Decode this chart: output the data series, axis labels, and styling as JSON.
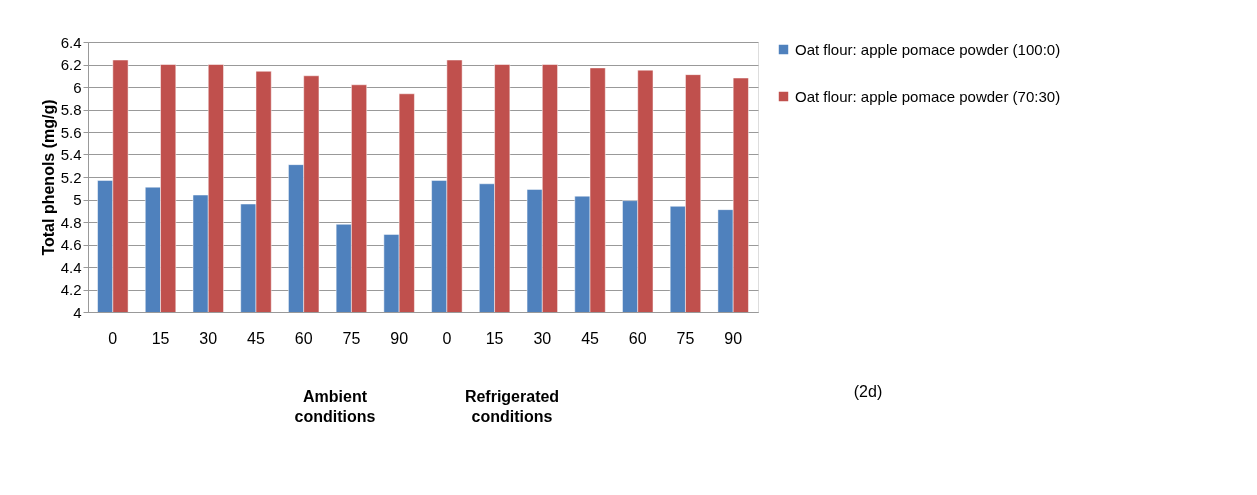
{
  "chart_data": {
    "type": "bar",
    "ylabel": "Total phenols (mg/g)",
    "categories": [
      "0",
      "15",
      "30",
      "45",
      "60",
      "75",
      "90",
      "0",
      "15",
      "30",
      "45",
      "60",
      "75",
      "90"
    ],
    "series": [
      {
        "name": "Oat flour: apple pomace powder (100:0)",
        "color": "#4f81bd",
        "values": [
          5.17,
          5.11,
          5.04,
          4.96,
          5.31,
          4.78,
          4.69,
          5.17,
          5.14,
          5.09,
          5.03,
          4.99,
          4.94,
          4.91
        ]
      },
      {
        "name": "Oat flour: apple pomace powder (70:30)",
        "color": "#c0504d",
        "values": [
          6.24,
          6.2,
          6.2,
          6.14,
          6.1,
          6.02,
          5.94,
          6.24,
          6.2,
          6.2,
          6.17,
          6.15,
          6.11,
          6.08
        ]
      }
    ],
    "ylim": [
      4,
      6.4
    ],
    "yticks": [
      4,
      4.2,
      4.4,
      4.6,
      4.8,
      5,
      5.2,
      5.4,
      5.6,
      5.8,
      6,
      6.2,
      6.4
    ],
    "grid": "y",
    "legend": "right",
    "annotations": [
      "Ambient conditions",
      "Refrigerated conditions",
      "(2d)"
    ]
  }
}
